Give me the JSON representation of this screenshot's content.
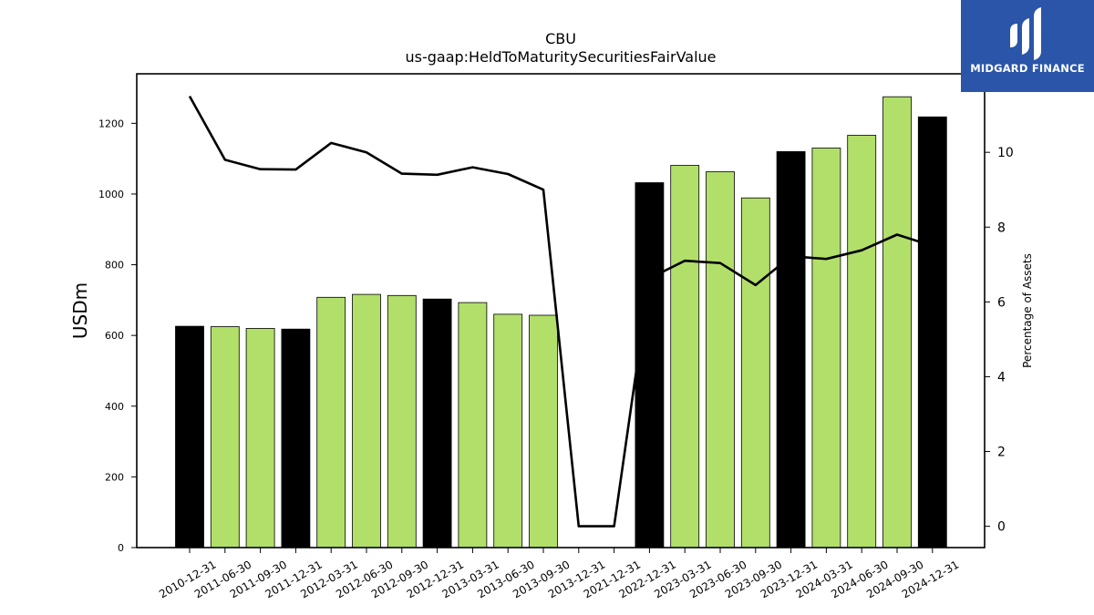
{
  "chart_data": {
    "type": "bar",
    "title": "CBU",
    "subtitle": "us-gaap:HeldToMaturitySecuritiesFairValue",
    "ylabel": "USDm",
    "y2label": "Percentage of Assets",
    "ylim": [
      0,
      1340
    ],
    "y2lim": [
      -0.57,
      12.1
    ],
    "yticks": [
      0,
      200,
      400,
      600,
      800,
      1000,
      1200
    ],
    "y2ticks": [
      0,
      2,
      4,
      6,
      8,
      10
    ],
    "categories": [
      "2010-12-31",
      "2011-06-30",
      "2011-09-30",
      "2011-12-31",
      "2012-03-31",
      "2012-06-30",
      "2012-09-30",
      "2012-12-31",
      "2013-03-31",
      "2013-06-30",
      "2013-09-30",
      "2013-12-31",
      "2021-12-31",
      "2022-12-31",
      "2023-03-31",
      "2023-06-30",
      "2023-09-30",
      "2023-12-31",
      "2024-03-31",
      "2024-06-30",
      "2024-09-30",
      "2024-12-31"
    ],
    "series": [
      {
        "type": "bar",
        "values": [
          626,
          625,
          620,
          618,
          708,
          716,
          713,
          703,
          693,
          660,
          657,
          0,
          0,
          1032,
          1081,
          1063,
          989,
          1120,
          1130,
          1166,
          1275,
          1218
        ],
        "bar_colors": [
          "#000000",
          "#b2df6a",
          "#b2df6a",
          "#000000",
          "#b2df6a",
          "#b2df6a",
          "#b2df6a",
          "#000000",
          "#b2df6a",
          "#b2df6a",
          "#b2df6a",
          "#000000",
          "#000000",
          "#000000",
          "#b2df6a",
          "#b2df6a",
          "#b2df6a",
          "#000000",
          "#b2df6a",
          "#b2df6a",
          "#b2df6a",
          "#000000"
        ]
      },
      {
        "type": "line",
        "axis": "right",
        "color": "#000000",
        "values": [
          11.5,
          9.8,
          9.55,
          9.54,
          10.25,
          10.0,
          9.43,
          9.4,
          9.6,
          9.42,
          9.0,
          0.0,
          0.0,
          6.63,
          7.1,
          7.04,
          6.45,
          7.22,
          7.15,
          7.38,
          7.8,
          7.5
        ]
      }
    ],
    "grid": false
  },
  "logo": {
    "text": "MIDGARD FINANCE",
    "background": "#2a55a8"
  }
}
